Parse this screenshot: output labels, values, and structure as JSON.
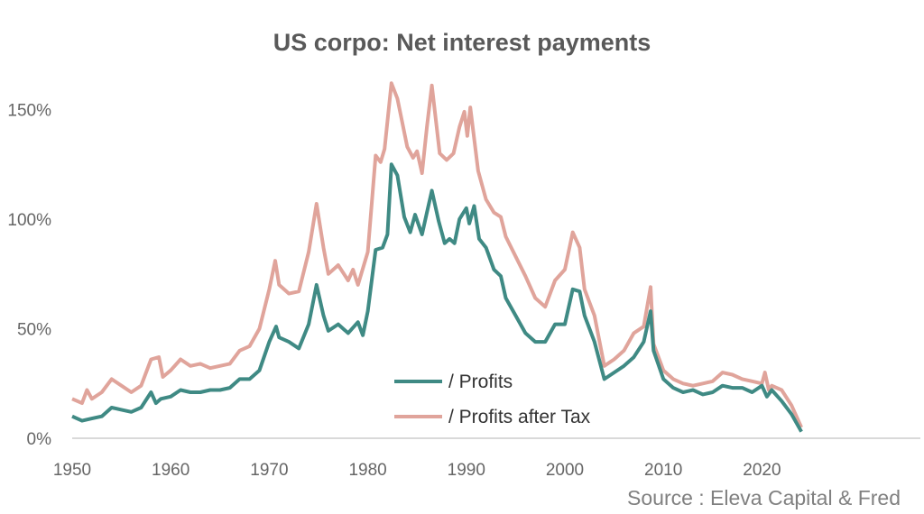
{
  "chart_data": {
    "type": "line",
    "title": "US corpo: Net interest payments",
    "xlabel": "",
    "ylabel": "",
    "xlim": [
      1950,
      2024
    ],
    "ylim": [
      0,
      165
    ],
    "x_ticks": [
      1950,
      1960,
      1970,
      1980,
      1990,
      2000,
      2010,
      2020
    ],
    "x_tick_labels": [
      "1950",
      "1960",
      "1970",
      "1980",
      "1990",
      "2000",
      "2010",
      "2020"
    ],
    "y_ticks": [
      0,
      50,
      100,
      150
    ],
    "y_tick_labels": [
      "0%",
      "50%",
      "100%",
      "150%"
    ],
    "grid": false,
    "legend_position": "bottom-center",
    "source": "Source : Eleva Capital & Fred",
    "series": [
      {
        "name": "/ Profits",
        "color": "#3f8a84",
        "points": [
          [
            1950,
            10
          ],
          [
            1951,
            8
          ],
          [
            1952,
            9
          ],
          [
            1953,
            10
          ],
          [
            1954,
            14
          ],
          [
            1955,
            13
          ],
          [
            1956,
            12
          ],
          [
            1957,
            14
          ],
          [
            1958,
            21
          ],
          [
            1958.5,
            16
          ],
          [
            1959,
            18
          ],
          [
            1960,
            19
          ],
          [
            1961,
            22
          ],
          [
            1962,
            21
          ],
          [
            1963,
            21
          ],
          [
            1964,
            22
          ],
          [
            1965,
            22
          ],
          [
            1966,
            23
          ],
          [
            1967,
            27
          ],
          [
            1968,
            27
          ],
          [
            1969,
            31
          ],
          [
            1970,
            44
          ],
          [
            1970.7,
            51
          ],
          [
            1971,
            46
          ],
          [
            1972,
            44
          ],
          [
            1973,
            41
          ],
          [
            1974,
            52
          ],
          [
            1974.8,
            70
          ],
          [
            1975.5,
            56
          ],
          [
            1976,
            49
          ],
          [
            1977,
            52
          ],
          [
            1978,
            48
          ],
          [
            1979,
            53
          ],
          [
            1979.5,
            47
          ],
          [
            1980,
            58
          ],
          [
            1980.8,
            86
          ],
          [
            1981.5,
            87
          ],
          [
            1982,
            93
          ],
          [
            1982.4,
            125
          ],
          [
            1983,
            120
          ],
          [
            1983.7,
            101
          ],
          [
            1984.3,
            94
          ],
          [
            1984.8,
            102
          ],
          [
            1985.5,
            93
          ],
          [
            1986,
            103
          ],
          [
            1986.5,
            113
          ],
          [
            1987.2,
            99
          ],
          [
            1987.8,
            89
          ],
          [
            1988.3,
            91
          ],
          [
            1988.8,
            89
          ],
          [
            1989.3,
            100
          ],
          [
            1990,
            105
          ],
          [
            1990.3,
            98
          ],
          [
            1990.8,
            106
          ],
          [
            1991.3,
            91
          ],
          [
            1992,
            87
          ],
          [
            1992.8,
            77
          ],
          [
            1993.5,
            74
          ],
          [
            1994,
            64
          ],
          [
            1995,
            56
          ],
          [
            1996,
            48
          ],
          [
            1997,
            44
          ],
          [
            1998,
            44
          ],
          [
            1999,
            52
          ],
          [
            2000,
            52
          ],
          [
            2000.8,
            68
          ],
          [
            2001.5,
            67
          ],
          [
            2002,
            56
          ],
          [
            2003,
            44
          ],
          [
            2004,
            27
          ],
          [
            2005,
            30
          ],
          [
            2006,
            33
          ],
          [
            2007,
            37
          ],
          [
            2008,
            44
          ],
          [
            2008.7,
            58
          ],
          [
            2009,
            40
          ],
          [
            2010,
            27
          ],
          [
            2011,
            23
          ],
          [
            2012,
            21
          ],
          [
            2013,
            22
          ],
          [
            2014,
            20
          ],
          [
            2015,
            21
          ],
          [
            2016,
            24
          ],
          [
            2017,
            23
          ],
          [
            2018,
            23
          ],
          [
            2019,
            21
          ],
          [
            2020,
            24
          ],
          [
            2020.5,
            19
          ],
          [
            2021,
            22
          ],
          [
            2022,
            17
          ],
          [
            2023,
            11
          ],
          [
            2024,
            3
          ]
        ]
      },
      {
        "name": "/ Profits after Tax",
        "color": "#e0a49b",
        "points": [
          [
            1950,
            18
          ],
          [
            1951,
            16
          ],
          [
            1951.5,
            22
          ],
          [
            1952,
            18
          ],
          [
            1953,
            21
          ],
          [
            1954,
            27
          ],
          [
            1955,
            24
          ],
          [
            1956,
            21
          ],
          [
            1957,
            24
          ],
          [
            1958,
            36
          ],
          [
            1958.8,
            37
          ],
          [
            1959.2,
            28
          ],
          [
            1960,
            31
          ],
          [
            1961,
            36
          ],
          [
            1962,
            33
          ],
          [
            1963,
            34
          ],
          [
            1964,
            32
          ],
          [
            1965,
            33
          ],
          [
            1966,
            34
          ],
          [
            1967,
            40
          ],
          [
            1968,
            42
          ],
          [
            1969,
            50
          ],
          [
            1970,
            68
          ],
          [
            1970.6,
            81
          ],
          [
            1971,
            70
          ],
          [
            1972,
            66
          ],
          [
            1973,
            67
          ],
          [
            1974,
            85
          ],
          [
            1974.8,
            107
          ],
          [
            1975.5,
            87
          ],
          [
            1976,
            75
          ],
          [
            1977,
            79
          ],
          [
            1978,
            72
          ],
          [
            1978.5,
            77
          ],
          [
            1979,
            70
          ],
          [
            1980,
            85
          ],
          [
            1980.8,
            129
          ],
          [
            1981.3,
            126
          ],
          [
            1981.7,
            132
          ],
          [
            1982.4,
            162
          ],
          [
            1983,
            155
          ],
          [
            1984,
            133
          ],
          [
            1984.6,
            128
          ],
          [
            1985,
            131
          ],
          [
            1985.5,
            121
          ],
          [
            1986,
            142
          ],
          [
            1986.5,
            161
          ],
          [
            1987.3,
            130
          ],
          [
            1988,
            127
          ],
          [
            1988.7,
            130
          ],
          [
            1989.3,
            142
          ],
          [
            1989.8,
            149
          ],
          [
            1990.1,
            138
          ],
          [
            1990.4,
            151
          ],
          [
            1991.2,
            122
          ],
          [
            1992,
            109
          ],
          [
            1992.8,
            103
          ],
          [
            1993.5,
            101
          ],
          [
            1994,
            92
          ],
          [
            1995,
            83
          ],
          [
            1996,
            74
          ],
          [
            1997,
            64
          ],
          [
            1998,
            60
          ],
          [
            1999,
            72
          ],
          [
            2000,
            77
          ],
          [
            2000.8,
            94
          ],
          [
            2001.5,
            87
          ],
          [
            2002,
            68
          ],
          [
            2003,
            56
          ],
          [
            2004,
            33
          ],
          [
            2005,
            36
          ],
          [
            2006,
            40
          ],
          [
            2007,
            48
          ],
          [
            2008,
            51
          ],
          [
            2008.7,
            69
          ],
          [
            2009,
            43
          ],
          [
            2010,
            31
          ],
          [
            2011,
            27
          ],
          [
            2012,
            25
          ],
          [
            2013,
            24
          ],
          [
            2014,
            25
          ],
          [
            2015,
            26
          ],
          [
            2016,
            30
          ],
          [
            2017,
            29
          ],
          [
            2018,
            27
          ],
          [
            2019,
            26
          ],
          [
            2020,
            25
          ],
          [
            2020.3,
            30
          ],
          [
            2020.7,
            22
          ],
          [
            2021,
            24
          ],
          [
            2022,
            22
          ],
          [
            2023,
            15
          ],
          [
            2024,
            5
          ]
        ]
      }
    ]
  }
}
